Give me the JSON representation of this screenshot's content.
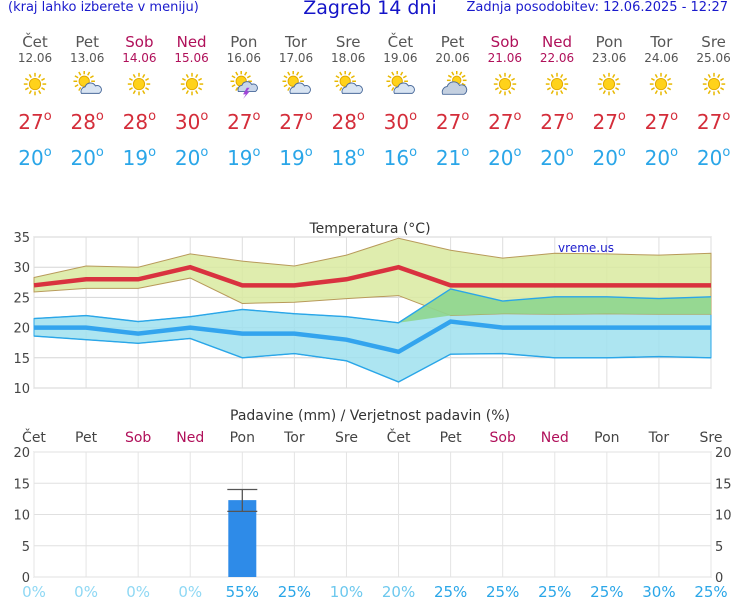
{
  "header": {
    "left_note": "(kraj lahko izberete v meniju)",
    "title": "Zagreb 14 dni",
    "updated": "Zadnja posodobitev: 12.06.2025 - 12:27"
  },
  "days": [
    {
      "name": "Čet",
      "date": "12.06",
      "weekend": false,
      "icon": "sun-icon",
      "tmax": "27",
      "tmin": "20"
    },
    {
      "name": "Pet",
      "date": "13.06",
      "weekend": false,
      "icon": "sun-cloud-icon",
      "tmax": "28",
      "tmin": "20"
    },
    {
      "name": "Sob",
      "date": "14.06",
      "weekend": true,
      "icon": "sun-icon",
      "tmax": "28",
      "tmin": "19"
    },
    {
      "name": "Ned",
      "date": "15.06",
      "weekend": true,
      "icon": "sun-icon",
      "tmax": "30",
      "tmin": "20"
    },
    {
      "name": "Pon",
      "date": "16.06",
      "weekend": false,
      "icon": "sun-storm-icon",
      "tmax": "27",
      "tmin": "19"
    },
    {
      "name": "Tor",
      "date": "17.06",
      "weekend": false,
      "icon": "sun-cloud-icon",
      "tmax": "27",
      "tmin": "19"
    },
    {
      "name": "Sre",
      "date": "18.06",
      "weekend": false,
      "icon": "sun-cloud-icon",
      "tmax": "28",
      "tmin": "18"
    },
    {
      "name": "Čet",
      "date": "19.06",
      "weekend": false,
      "icon": "sun-cloud-icon",
      "tmax": "30",
      "tmin": "16"
    },
    {
      "name": "Pet",
      "date": "20.06",
      "weekend": false,
      "icon": "cloud-sun-icon",
      "tmax": "27",
      "tmin": "21"
    },
    {
      "name": "Sob",
      "date": "21.06",
      "weekend": true,
      "icon": "sun-icon",
      "tmax": "27",
      "tmin": "20"
    },
    {
      "name": "Ned",
      "date": "22.06",
      "weekend": true,
      "icon": "sun-icon",
      "tmax": "27",
      "tmin": "20"
    },
    {
      "name": "Pon",
      "date": "23.06",
      "weekend": false,
      "icon": "sun-icon",
      "tmax": "27",
      "tmin": "20"
    },
    {
      "name": "Tor",
      "date": "24.06",
      "weekend": false,
      "icon": "sun-icon",
      "tmax": "27",
      "tmin": "20"
    },
    {
      "name": "Sre",
      "date": "25.06",
      "weekend": false,
      "icon": "sun-icon",
      "tmax": "27",
      "tmin": "20"
    }
  ],
  "colors": {
    "title": "#1414c8",
    "max_temp": "#d42d3a",
    "min_temp": "#2aa6e8",
    "weekend": "#b0105a",
    "warm_band": "#d9eaa0",
    "cool_band": "#9fe0ee",
    "overlap_band": "#8fd68f",
    "precip_bar": "#2e8be8"
  },
  "chart_data": [
    {
      "type": "line",
      "title": "Temperatura (°C)",
      "watermark": "vreme.us",
      "x": [
        "12.06",
        "13.06",
        "14.06",
        "15.06",
        "16.06",
        "17.06",
        "18.06",
        "19.06",
        "20.06",
        "21.06",
        "22.06",
        "23.06",
        "24.06",
        "25.06"
      ],
      "ylim": [
        10,
        35
      ],
      "yticks": [
        10,
        15,
        20,
        25,
        30,
        35
      ],
      "grid": true,
      "series": [
        {
          "values": [
            27,
            28,
            28,
            30,
            27,
            27,
            28,
            30,
            27,
            27,
            27,
            27,
            27,
            27
          ]
        },
        {
          "values": [
            28.3,
            30.2,
            30.0,
            32.2,
            31.0,
            30.2,
            32.0,
            34.8,
            32.8,
            31.5,
            32.3,
            32.2,
            32.0,
            32.3
          ]
        },
        {
          "values": [
            25.9,
            26.5,
            26.5,
            28.2,
            24.0,
            24.2,
            24.8,
            25.3,
            22.0,
            22.3,
            22.2,
            22.3,
            22.2,
            22.2
          ]
        },
        {
          "values": [
            20,
            20,
            19,
            20,
            19,
            19,
            18,
            16,
            21,
            20,
            20,
            20,
            20,
            20
          ]
        },
        {
          "values": [
            21.5,
            22.0,
            21.0,
            21.8,
            23.0,
            22.3,
            21.8,
            20.8,
            26.4,
            24.4,
            25.1,
            25.1,
            24.8,
            25.1
          ]
        },
        {
          "values": [
            18.6,
            18.0,
            17.4,
            18.2,
            15.0,
            15.7,
            14.5,
            11.0,
            15.6,
            15.7,
            15.0,
            15.0,
            15.2,
            15.0
          ]
        }
      ]
    },
    {
      "type": "bar",
      "title": "Padavine (mm) / Verjetnost padavin (%)",
      "categories": [
        "Čet",
        "Pet",
        "Sob",
        "Ned",
        "Pon",
        "Tor",
        "Sre",
        "Čet",
        "Pet",
        "Sob",
        "Ned",
        "Pon",
        "Tor",
        "Sre"
      ],
      "weekend": [
        false,
        false,
        true,
        true,
        false,
        false,
        false,
        false,
        false,
        true,
        true,
        false,
        false,
        false
      ],
      "values": [
        0,
        0,
        0,
        0,
        12.3,
        0,
        0,
        0,
        0,
        0,
        0,
        0,
        0,
        0
      ],
      "error_range": [
        10.5,
        14.0
      ],
      "error_index": 4,
      "ylim": [
        0,
        20
      ],
      "yticks": [
        0,
        5,
        10,
        15,
        20
      ],
      "probability": [
        "0%",
        "0%",
        "0%",
        "0%",
        "55%",
        "25%",
        "10%",
        "20%",
        "25%",
        "25%",
        "25%",
        "25%",
        "30%",
        "25%"
      ],
      "probability_values": [
        0,
        0,
        0,
        0,
        55,
        25,
        10,
        20,
        25,
        25,
        25,
        25,
        30,
        25
      ]
    }
  ]
}
